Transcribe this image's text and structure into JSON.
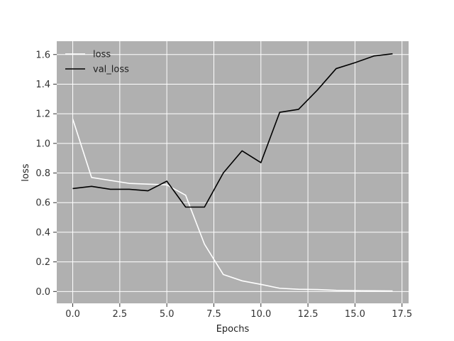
{
  "chart_data": {
    "type": "line",
    "title": "",
    "xlabel": "Epochs",
    "ylabel": "loss",
    "xlim": [
      -0.85,
      17.85
    ],
    "ylim": [
      -0.08,
      1.69
    ],
    "xticks": [
      0.0,
      2.5,
      5.0,
      7.5,
      10.0,
      12.5,
      15.0,
      17.5
    ],
    "xtick_labels": [
      "0.0",
      "2.5",
      "5.0",
      "7.5",
      "10.0",
      "12.5",
      "15.0",
      "17.5"
    ],
    "yticks": [
      0.0,
      0.2,
      0.4,
      0.6,
      0.8,
      1.0,
      1.2,
      1.4,
      1.6
    ],
    "ytick_labels": [
      "0.0",
      "0.2",
      "0.4",
      "0.6",
      "0.8",
      "1.0",
      "1.2",
      "1.4",
      "1.6"
    ],
    "grid": true,
    "background": "#b0b0b0",
    "grid_color": "#ffffff",
    "legend_position": "top-left",
    "x": [
      0,
      1,
      2,
      3,
      4,
      5,
      6,
      7,
      8,
      9,
      10,
      11,
      12,
      13,
      14,
      15,
      16,
      17
    ],
    "series": [
      {
        "name": "loss",
        "color": "#ffffff",
        "values": [
          1.165,
          0.77,
          0.75,
          0.73,
          0.725,
          0.72,
          0.65,
          0.32,
          0.115,
          0.072,
          0.048,
          0.022,
          0.015,
          0.013,
          0.008,
          0.006,
          0.005,
          0.004
        ]
      },
      {
        "name": "val_loss",
        "color": "#000000",
        "values": [
          0.695,
          0.71,
          0.69,
          0.69,
          0.68,
          0.745,
          0.57,
          0.57,
          0.8,
          0.95,
          0.87,
          1.21,
          1.23,
          1.36,
          1.505,
          1.545,
          1.59,
          1.605
        ]
      }
    ]
  }
}
